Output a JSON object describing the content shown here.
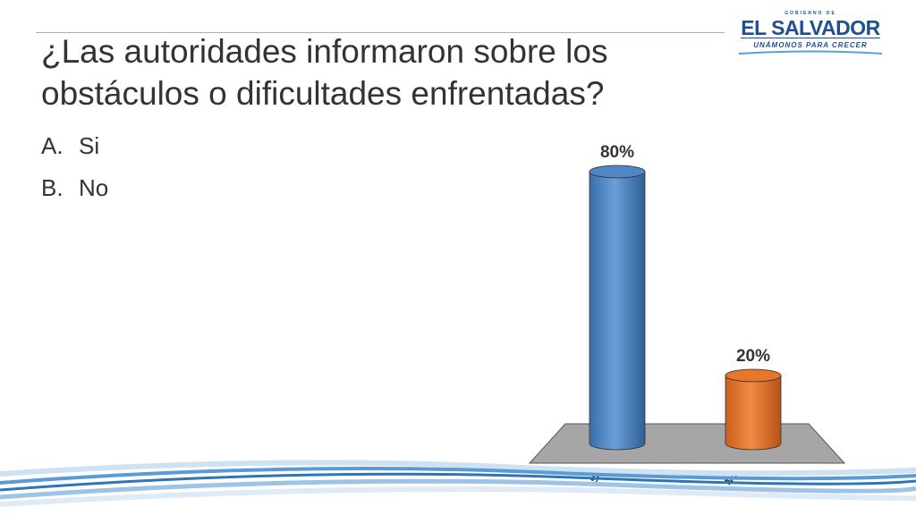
{
  "slide": {
    "title": "¿Las autoridades informaron sobre los obstáculos o dificultades enfrentadas?",
    "options": [
      {
        "marker": "A.",
        "label": "Si"
      },
      {
        "marker": "B.",
        "label": "No"
      }
    ]
  },
  "logo": {
    "small_text": "GOBIERNO DE",
    "main_text": "EL SALVADOR",
    "sub_text": "UNÁMONOS PARA CRECER"
  },
  "colors": {
    "bar_si": "#4f86c6",
    "bar_no": "#e7762a",
    "floor": "#a6a6a6",
    "accent": "#1d4f91"
  },
  "chart_data": {
    "type": "bar",
    "categories": [
      "Si",
      "No"
    ],
    "values": [
      80,
      20
    ],
    "data_labels": [
      "80%",
      "20%"
    ],
    "ylim": [
      0,
      100
    ],
    "grid": false,
    "legend": "none"
  }
}
